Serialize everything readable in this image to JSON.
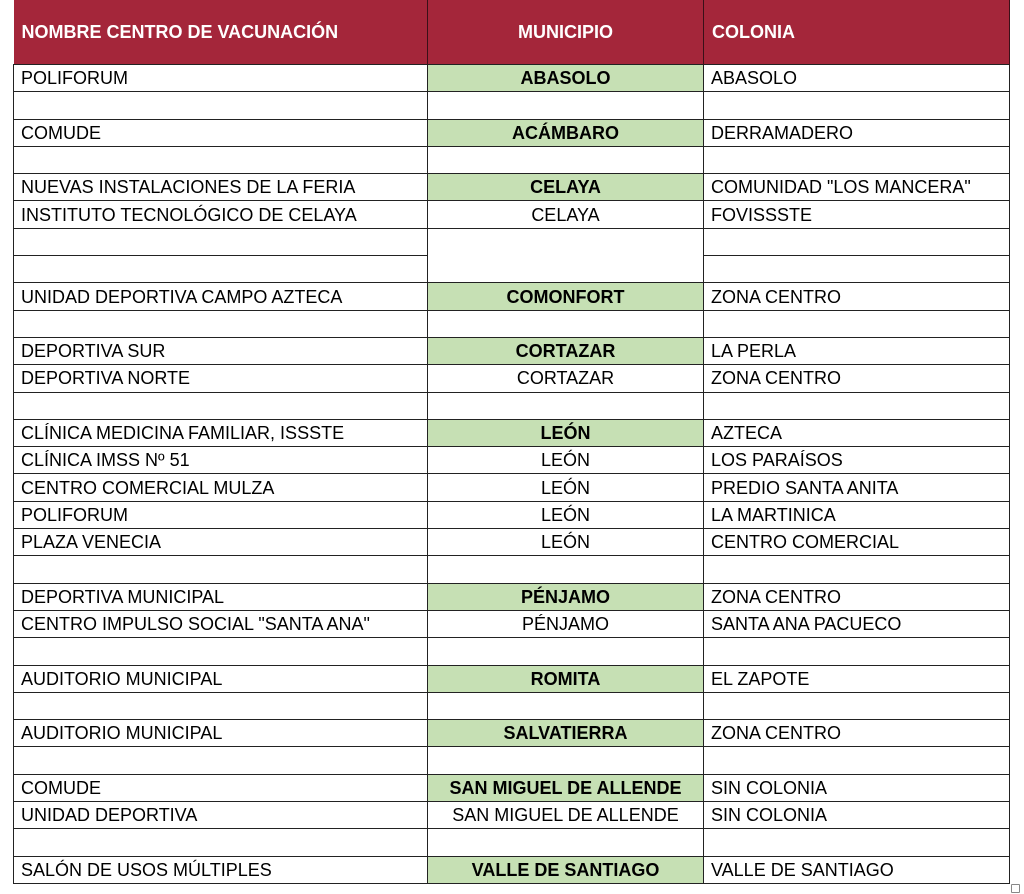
{
  "headers": {
    "name": "NOMBRE CENTRO DE VACUNACIÓN",
    "municipio": "MUNICIPIO",
    "colonia": "COLONIA"
  },
  "colors": {
    "header_bg": "#a4263a",
    "highlight_green": "#c6e0b4"
  },
  "rows": [
    {
      "name": "POLIFORUM",
      "municipio": "ABASOLO",
      "colonia": "ABASOLO",
      "highlight": true
    },
    {
      "name": "",
      "municipio": "",
      "colonia": ""
    },
    {
      "name": "COMUDE",
      "municipio": "ACÁMBARO",
      "colonia": "DERRAMADERO",
      "highlight": true
    },
    {
      "name": "",
      "municipio": "",
      "colonia": ""
    },
    {
      "name": "NUEVAS INSTALACIONES DE LA FERIA",
      "municipio": "CELAYA",
      "colonia": "COMUNIDAD \"LOS MANCERA\"",
      "highlight": true
    },
    {
      "name": "INSTITUTO TECNOLÓGICO DE CELAYA",
      "municipio": "CELAYA",
      "colonia": "FOVISSSTE"
    },
    {
      "name": "",
      "municipio": "",
      "colonia": "",
      "merge_start": true
    },
    {
      "name": "",
      "colonia": "",
      "merged": true
    },
    {
      "name": "UNIDAD DEPORTIVA CAMPO AZTECA",
      "municipio": "COMONFORT",
      "colonia": "ZONA CENTRO",
      "highlight": true
    },
    {
      "name": "",
      "municipio": "",
      "colonia": ""
    },
    {
      "name": "DEPORTIVA SUR",
      "municipio": "CORTAZAR",
      "colonia": "LA PERLA",
      "highlight": true
    },
    {
      "name": "DEPORTIVA NORTE",
      "municipio": "CORTAZAR",
      "colonia": "ZONA CENTRO"
    },
    {
      "name": "",
      "municipio": "",
      "colonia": ""
    },
    {
      "name": "CLÍNICA MEDICINA FAMILIAR, ISSSTE",
      "municipio": "LEÓN",
      "colonia": "AZTECA",
      "highlight": true
    },
    {
      "name": "CLÍNICA IMSS Nº 51",
      "municipio": "LEÓN",
      "colonia": "LOS PARAÍSOS"
    },
    {
      "name": "CENTRO COMERCIAL MULZA",
      "municipio": "LEÓN",
      "colonia": "PREDIO SANTA ANITA"
    },
    {
      "name": "POLIFORUM",
      "municipio": "LEÓN",
      "colonia": "LA MARTINICA"
    },
    {
      "name": "PLAZA VENECIA",
      "municipio": "LEÓN",
      "colonia": "CENTRO COMERCIAL"
    },
    {
      "name": "",
      "municipio": "",
      "colonia": ""
    },
    {
      "name": "DEPORTIVA MUNICIPAL",
      "municipio": "PÉNJAMO",
      "colonia": "ZONA CENTRO",
      "highlight": true
    },
    {
      "name": "CENTRO IMPULSO SOCIAL \"SANTA ANA\"",
      "municipio": "PÉNJAMO",
      "colonia": "SANTA ANA PACUECO"
    },
    {
      "name": "",
      "municipio": "",
      "colonia": ""
    },
    {
      "name": "AUDITORIO MUNICIPAL",
      "municipio": "ROMITA",
      "colonia": "EL ZAPOTE",
      "highlight": true
    },
    {
      "name": "",
      "municipio": "",
      "colonia": ""
    },
    {
      "name": "AUDITORIO MUNICIPAL",
      "municipio": "SALVATIERRA",
      "colonia": "ZONA CENTRO",
      "highlight": true
    },
    {
      "name": "",
      "municipio": "",
      "colonia": ""
    },
    {
      "name": "COMUDE",
      "municipio": "SAN MIGUEL DE ALLENDE",
      "colonia": "SIN COLONIA",
      "highlight": true
    },
    {
      "name": "UNIDAD DEPORTIVA",
      "municipio": "SAN MIGUEL DE ALLENDE",
      "colonia": "SIN COLONIA"
    },
    {
      "name": "",
      "municipio": "",
      "colonia": ""
    },
    {
      "name": "SALÓN DE USOS MÚLTIPLES",
      "municipio": "VALLE DE SANTIAGO",
      "colonia": "VALLE DE SANTIAGO",
      "highlight": true
    }
  ]
}
